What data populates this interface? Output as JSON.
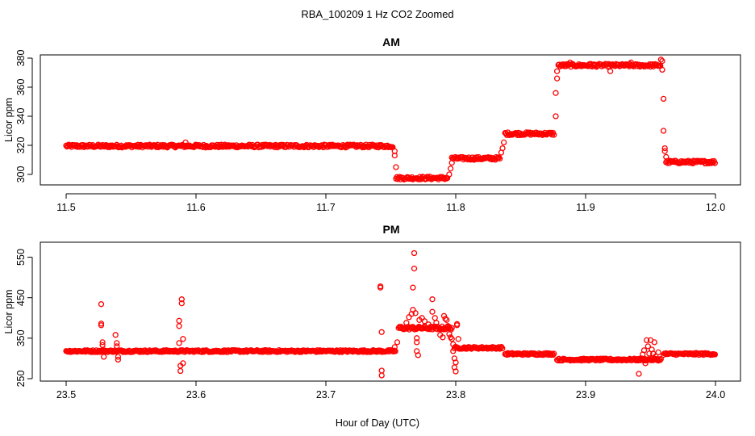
{
  "figure_title": "RBA_100209  1 Hz CO2 Zoomed",
  "x_axis_label": "Hour of Day (UTC)",
  "colors": {
    "points": "#ff0000",
    "axes": "#000000",
    "background": "#ffffff"
  },
  "chart_data": [
    {
      "type": "scatter",
      "title": "AM",
      "xlabel": "",
      "ylabel": "Licor ppm",
      "xlim": [
        11.5,
        12.0
      ],
      "ylim": [
        295,
        380
      ],
      "x_ticks": [
        11.5,
        11.6,
        11.7,
        11.8,
        11.9,
        12.0
      ],
      "x_tick_labels": [
        "11.5",
        "11.6",
        "11.7",
        "11.8",
        "11.9",
        "12.0"
      ],
      "y_ticks": [
        300,
        320,
        340,
        360,
        380
      ],
      "y_tick_labels": [
        "300",
        "320",
        "340",
        "360",
        "380"
      ],
      "series": [
        {
          "name": "CO2",
          "segments": [
            {
              "x_start": 11.5,
              "x_end": 11.752,
              "y": 319.5,
              "noise": 1.0
            },
            {
              "x_start": 11.754,
              "x_end": 11.794,
              "y": 297.5,
              "noise": 1.0
            },
            {
              "x_start": 11.797,
              "x_end": 11.834,
              "y": 311,
              "noise": 1.0
            },
            {
              "x_start": 11.838,
              "x_end": 11.876,
              "y": 328,
              "noise": 1.0
            },
            {
              "x_start": 11.879,
              "x_end": 11.958,
              "y": 375,
              "noise": 1.0
            },
            {
              "x_start": 11.962,
              "x_end": 12.0,
              "y": 308.5,
              "noise": 1.0
            }
          ],
          "points": [
            [
              11.592,
              322
            ],
            [
              11.753,
              316
            ],
            [
              11.753,
              313
            ],
            [
              11.754,
              305
            ],
            [
              11.795,
              300
            ],
            [
              11.796,
              304
            ],
            [
              11.797,
              308
            ],
            [
              11.835,
              315
            ],
            [
              11.836,
              318
            ],
            [
              11.837,
              322
            ],
            [
              11.877,
              340
            ],
            [
              11.877,
              356
            ],
            [
              11.878,
              366
            ],
            [
              11.878,
              371
            ],
            [
              11.958,
              379
            ],
            [
              11.959,
              378
            ],
            [
              11.959,
              372
            ],
            [
              11.96,
              352
            ],
            [
              11.96,
              330
            ],
            [
              11.961,
              318
            ],
            [
              11.961,
              316
            ],
            [
              11.962,
              312
            ],
            [
              11.919,
              371
            ],
            [
              11.935,
              377
            ],
            [
              11.904,
              376
            ],
            [
              11.888,
              377
            ]
          ]
        }
      ]
    },
    {
      "type": "scatter",
      "title": "PM",
      "xlabel": "Hour of Day (UTC)",
      "ylabel": "Licor ppm",
      "xlim": [
        23.5,
        24.0
      ],
      "ylim": [
        250,
        575
      ],
      "x_ticks": [
        23.5,
        23.6,
        23.7,
        23.8,
        23.9,
        24.0
      ],
      "x_tick_labels": [
        "23.5",
        "23.6",
        "23.7",
        "23.8",
        "23.9",
        "24.0"
      ],
      "y_ticks": [
        250,
        350,
        450,
        550
      ],
      "y_tick_labels": [
        "250",
        "350",
        "450",
        "550"
      ],
      "series": [
        {
          "name": "CO2",
          "segments": [
            {
              "x_start": 23.5,
              "x_end": 23.754,
              "y": 318,
              "noise": 2.5
            },
            {
              "x_start": 23.756,
              "x_end": 23.797,
              "y": 375,
              "noise": 4.0
            },
            {
              "x_start": 23.799,
              "x_end": 23.836,
              "y": 326,
              "noise": 2.5
            },
            {
              "x_start": 23.838,
              "x_end": 23.876,
              "y": 311,
              "noise": 2.5
            },
            {
              "x_start": 23.878,
              "x_end": 23.958,
              "y": 297,
              "noise": 2.5
            },
            {
              "x_start": 23.96,
              "x_end": 24.0,
              "y": 311,
              "noise": 2.5
            }
          ],
          "points": [
            [
              23.527,
              434
            ],
            [
              23.527,
              386
            ],
            [
              23.527,
              382
            ],
            [
              23.528,
              340
            ],
            [
              23.528,
              333
            ],
            [
              23.529,
              304
            ],
            [
              23.538,
              358
            ],
            [
              23.539,
              338
            ],
            [
              23.539,
              330
            ],
            [
              23.54,
              304
            ],
            [
              23.54,
              297
            ],
            [
              23.587,
              393
            ],
            [
              23.587,
              380
            ],
            [
              23.587,
              338
            ],
            [
              23.588,
              282
            ],
            [
              23.588,
              269
            ],
            [
              23.589,
              446
            ],
            [
              23.589,
              436
            ],
            [
              23.59,
              348
            ],
            [
              23.59,
              288
            ],
            [
              23.742,
              478
            ],
            [
              23.742,
              475
            ],
            [
              23.743,
              365
            ],
            [
              23.743,
              270
            ],
            [
              23.743,
              258
            ],
            [
              23.753,
              328
            ],
            [
              23.755,
              340
            ],
            [
              23.758,
              378
            ],
            [
              23.762,
              388
            ],
            [
              23.764,
              402
            ],
            [
              23.766,
              410
            ],
            [
              23.767,
              420
            ],
            [
              23.767,
              475
            ],
            [
              23.768,
              560
            ],
            [
              23.768,
              522
            ],
            [
              23.769,
              412
            ],
            [
              23.77,
              350
            ],
            [
              23.77,
              340
            ],
            [
              23.77,
              318
            ],
            [
              23.771,
              308
            ],
            [
              23.772,
              395
            ],
            [
              23.774,
              400
            ],
            [
              23.776,
              392
            ],
            [
              23.779,
              384
            ],
            [
              23.782,
              446
            ],
            [
              23.782,
              415
            ],
            [
              23.784,
              400
            ],
            [
              23.785,
              388
            ],
            [
              23.786,
              372
            ],
            [
              23.788,
              358
            ],
            [
              23.79,
              352
            ],
            [
              23.791,
              405
            ],
            [
              23.792,
              398
            ],
            [
              23.793,
              395
            ],
            [
              23.794,
              380
            ],
            [
              23.795,
              360
            ],
            [
              23.796,
              352
            ],
            [
              23.797,
              348
            ],
            [
              23.798,
              335
            ],
            [
              23.798,
              318
            ],
            [
              23.799,
              300
            ],
            [
              23.799,
              278
            ],
            [
              23.8,
              268
            ],
            [
              23.8,
              290
            ],
            [
              23.801,
              385
            ],
            [
              23.801,
              382
            ],
            [
              23.802,
              348
            ],
            [
              23.941,
              262
            ],
            [
              23.943,
              300
            ],
            [
              23.944,
              310
            ],
            [
              23.945,
              320
            ],
            [
              23.946,
              288
            ],
            [
              23.947,
              345
            ],
            [
              23.948,
              330
            ],
            [
              23.949,
              312
            ],
            [
              23.95,
              345
            ],
            [
              23.951,
              322
            ],
            [
              23.952,
              312
            ],
            [
              23.953,
              340
            ],
            [
              23.954,
              305
            ],
            [
              23.955,
              298
            ],
            [
              23.956,
              315
            ]
          ]
        }
      ]
    }
  ]
}
